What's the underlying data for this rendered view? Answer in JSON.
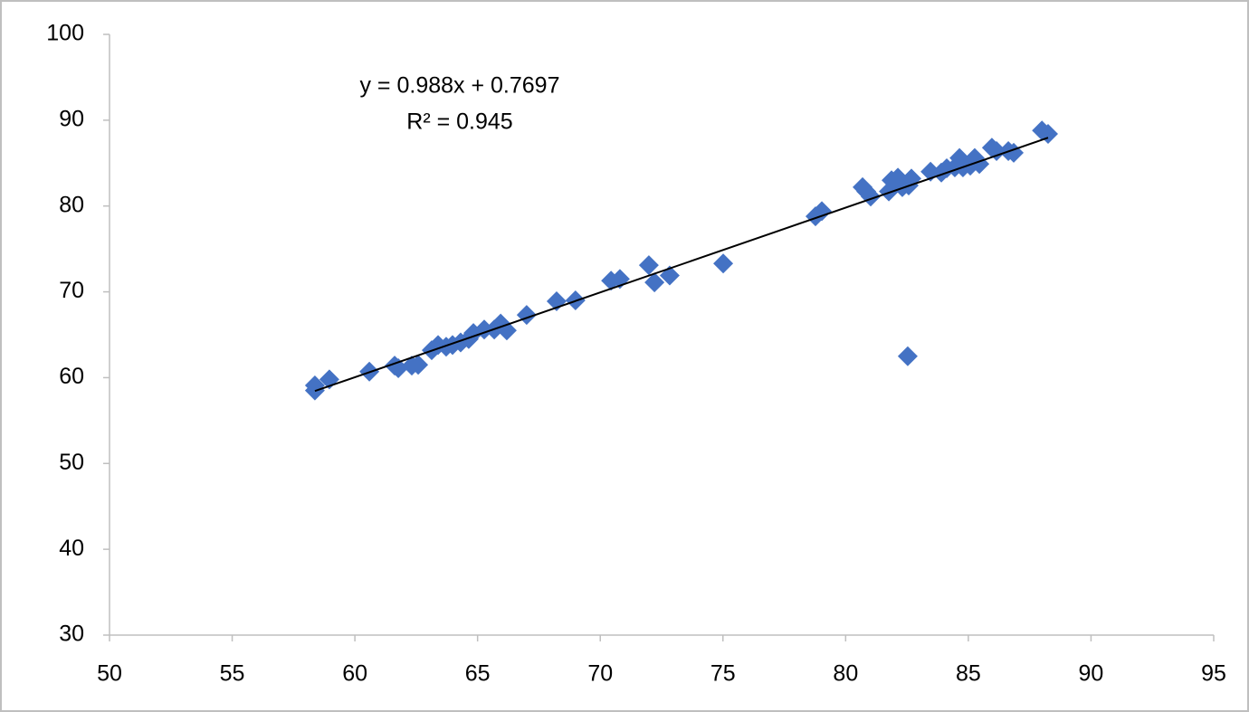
{
  "chart_data": {
    "type": "scatter",
    "annotations": [
      "y = 0.988x + 0.7697",
      "R² = 0.945"
    ],
    "trendline": {
      "slope": 0.988,
      "intercept": 0.7697
    },
    "color": "#4472c4",
    "x": [
      58.37,
      58.37,
      58.96,
      60.59,
      61.62,
      61.77,
      62.32,
      62.58,
      63.13,
      63.39,
      63.72,
      63.98,
      64.31,
      64.64,
      64.83,
      65.27,
      65.68,
      65.94,
      66.19,
      67.0,
      68.22,
      68.99,
      70.44,
      70.8,
      71.98,
      72.21,
      72.83,
      75.01,
      78.77,
      79.03,
      80.69,
      80.84,
      81.02,
      81.76,
      81.87,
      82.13,
      82.31,
      82.53,
      82.57,
      82.68,
      83.46,
      83.9,
      84.12,
      84.45,
      84.64,
      84.78,
      85.08,
      85.26,
      85.45,
      85.96,
      86.15,
      86.63,
      86.85,
      88.0,
      88.25
    ],
    "values": [
      58.5,
      59.1,
      59.8,
      60.7,
      61.4,
      61.1,
      61.4,
      61.5,
      63.2,
      63.8,
      63.6,
      63.8,
      64.1,
      64.5,
      65.2,
      65.6,
      65.6,
      66.3,
      65.5,
      67.3,
      68.9,
      69.0,
      71.3,
      71.5,
      73.1,
      71.1,
      71.9,
      73.3,
      78.8,
      79.4,
      82.2,
      81.7,
      81.1,
      81.7,
      83.0,
      83.3,
      82.2,
      62.5,
      82.4,
      83.2,
      84.0,
      83.9,
      84.4,
      84.5,
      85.6,
      84.5,
      84.7,
      85.6,
      84.9,
      86.8,
      86.4,
      86.4,
      86.2,
      88.8,
      88.4
    ],
    "xlim": [
      50,
      95
    ],
    "xticks": [
      50,
      55,
      60,
      65,
      70,
      75,
      80,
      85,
      90,
      95
    ],
    "ylim": [
      30,
      100
    ],
    "yticks": [
      30,
      40,
      50,
      60,
      70,
      80,
      90,
      100
    ]
  }
}
